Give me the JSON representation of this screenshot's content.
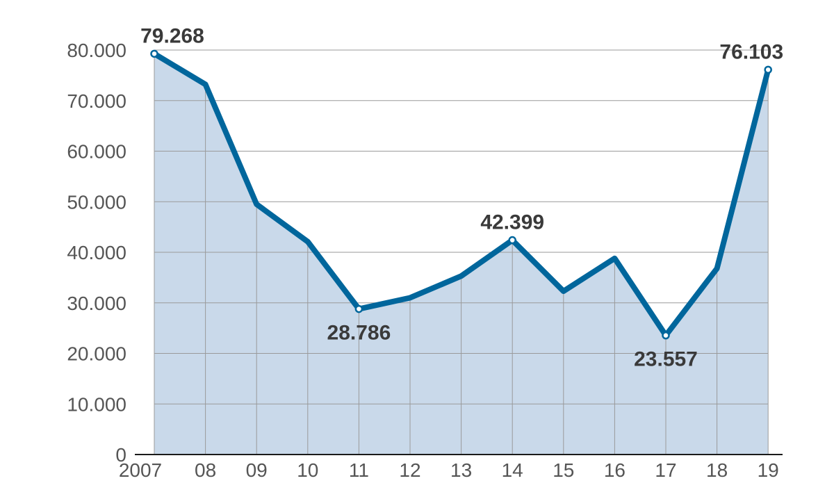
{
  "chart_data": {
    "type": "area",
    "x": [
      "2007",
      "08",
      "09",
      "10",
      "11",
      "12",
      "13",
      "14",
      "15",
      "16",
      "17",
      "18",
      "19"
    ],
    "values": [
      79268,
      73200,
      49500,
      42100,
      28786,
      31000,
      35300,
      42399,
      32300,
      38800,
      23557,
      36800,
      76103
    ],
    "ylim": [
      0,
      80000
    ],
    "yticks": [
      "0",
      "10.000",
      "20.000",
      "30.000",
      "40.000",
      "50.000",
      "60.000",
      "70.000",
      "80.000"
    ],
    "data_labels": [
      {
        "index": 0,
        "text": "79.268",
        "pos": "above"
      },
      {
        "index": 4,
        "text": "28.786",
        "pos": "below"
      },
      {
        "index": 7,
        "text": "42.399",
        "pos": "above"
      },
      {
        "index": 10,
        "text": "23.557",
        "pos": "below"
      },
      {
        "index": 12,
        "text": "76.103",
        "pos": "above"
      }
    ],
    "grid": true,
    "colors": {
      "line": "#00669c",
      "fill": "#c9d9ea",
      "grid": "#9a9a9a",
      "axis": "#1a1a1a",
      "marker_fill": "#ffffff"
    }
  }
}
